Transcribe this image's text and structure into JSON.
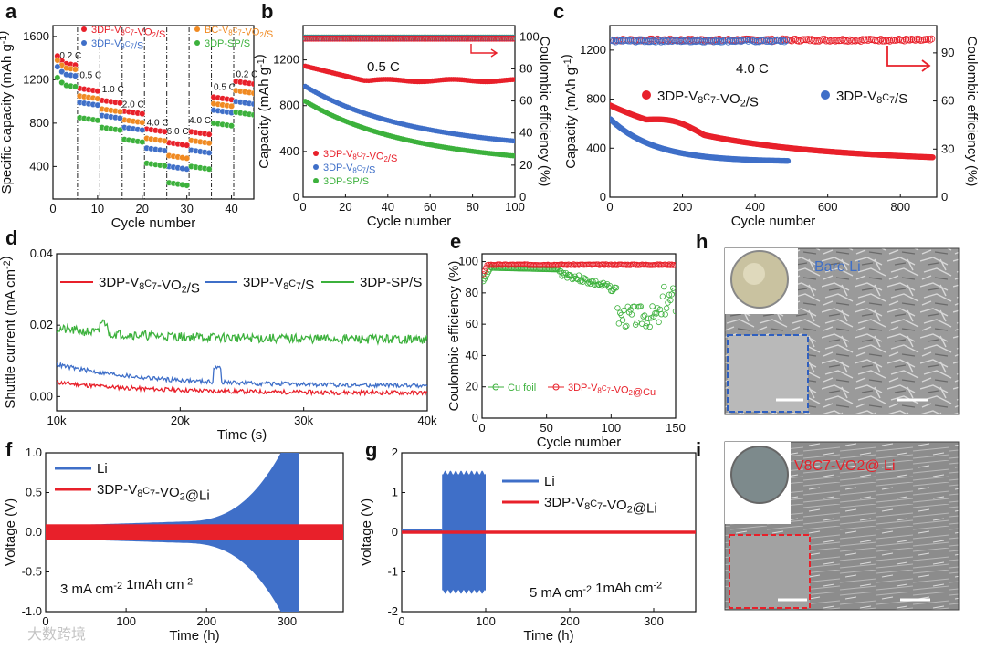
{
  "colors": {
    "red": "#e8202a",
    "blue": "#3f6fc8",
    "green": "#3cb13c",
    "orange": "#f08a22"
  },
  "panel_labels": {
    "a": "a",
    "b": "b",
    "c": "c",
    "d": "d",
    "e": "e",
    "f": "f",
    "g": "g",
    "h": "h",
    "i": "i"
  },
  "watermark": "大数跨境",
  "chart_data": [
    {
      "id": "a",
      "type": "scatter",
      "xlabel": "Cycle number",
      "ylabel": "Specific capacity (mAh g-1)",
      "xlim": [
        0,
        45
      ],
      "ylim": [
        100,
        1700
      ],
      "xticks": [
        0,
        10,
        20,
        30,
        40
      ],
      "yticks": [
        400,
        800,
        1200,
        1600
      ],
      "rate_labels": [
        {
          "label": "0.2 C",
          "x": 1.5,
          "y": 1395
        },
        {
          "label": "0.5 C",
          "x": 6,
          "y": 1215
        },
        {
          "label": "1.0 C",
          "x": 11,
          "y": 1085
        },
        {
          "label": "2.0 C",
          "x": 15.5,
          "y": 945
        },
        {
          "label": "4.0 C",
          "x": 21,
          "y": 780
        },
        {
          "label": "6.0 C",
          "x": 25.5,
          "y": 700
        },
        {
          "label": "4.0 C",
          "x": 30.5,
          "y": 800
        },
        {
          "label": "0.5 C",
          "x": 36,
          "y": 1105
        },
        {
          "label": "0.2 C",
          "x": 41,
          "y": 1225
        }
      ],
      "dividers": [
        5,
        10,
        15,
        20,
        25,
        30,
        35,
        40
      ],
      "series": [
        {
          "name": "3DP-V8C7-VO2/S",
          "color": "red",
          "levels": [
            1360,
            1120,
            1010,
            910,
            745,
            620,
            720,
            1040,
            1185
          ]
        },
        {
          "name": "BC-V8C7-VO2/S",
          "color": "orange",
          "levels": [
            1320,
            1050,
            930,
            830,
            660,
            500,
            640,
            980,
            1100
          ]
        },
        {
          "name": "3DP-V8C7/S",
          "color": "blue",
          "levels": [
            1260,
            990,
            870,
            760,
            570,
            400,
            550,
            920,
            1000
          ]
        },
        {
          "name": "3DP-SP/S",
          "color": "green",
          "levels": [
            1160,
            850,
            760,
            650,
            430,
            250,
            400,
            800,
            900
          ]
        }
      ]
    },
    {
      "id": "b",
      "type": "scatter",
      "xlabel": "Cycle number",
      "ylabel": "Capacity (mAh g-1)",
      "ylabel_right": "Coulombic efficiency (%)",
      "xlim": [
        0,
        100
      ],
      "ylim": [
        0,
        1500
      ],
      "ylim_right": [
        0,
        107
      ],
      "xticks": [
        0,
        20,
        40,
        60,
        80,
        100
      ],
      "yticks": [
        0,
        400,
        800,
        1200
      ],
      "yticks_right": [
        0,
        20,
        40,
        60,
        80,
        100
      ],
      "annotation": "0.5 C",
      "series": [
        {
          "name": "3DP-V8C7-VO2/S",
          "color": "red",
          "start": 1150,
          "end": 1020,
          "shape": "dip"
        },
        {
          "name": "3DP-V8C7/S",
          "color": "blue",
          "start": 980,
          "end": 490,
          "shape": "decay"
        },
        {
          "name": "3DP-SP/S",
          "color": "green",
          "start": 850,
          "end": 360,
          "shape": "decay"
        }
      ],
      "efficiency": 99.5
    },
    {
      "id": "c",
      "type": "scatter",
      "xlabel": "Cycle number",
      "ylabel": "Capacity (mAh g-1)",
      "ylabel_right": "Coulombic efficiency (%)",
      "xlim": [
        0,
        900
      ],
      "ylim": [
        0,
        1400
      ],
      "ylim_right": [
        0,
        107
      ],
      "xticks": [
        0,
        200,
        400,
        600,
        800
      ],
      "yticks": [
        0,
        400,
        800,
        1200
      ],
      "yticks_right": [
        0,
        30,
        60,
        90
      ],
      "annotation": "4.0 C",
      "series": [
        {
          "name": "3DP-V8C7-VO2/S",
          "color": "red",
          "start": 750,
          "end": 330,
          "n": 890
        },
        {
          "name": "3DP-V8C7/S",
          "color": "blue",
          "start": 640,
          "end": 290,
          "n": 490
        }
      ],
      "efficiency": 98
    },
    {
      "id": "d",
      "type": "line",
      "xlabel": "Time (s)",
      "ylabel": "Shuttle current (mA cm-2)",
      "xlim": [
        10000,
        40000
      ],
      "ylim": [
        -0.004,
        0.04
      ],
      "xticks": [
        10000,
        20000,
        30000,
        40000
      ],
      "xtick_labels": [
        "10k",
        "20k",
        "30k",
        "40k"
      ],
      "yticks": [
        0.0,
        0.02,
        0.04
      ],
      "ytick_labels": [
        "0.00",
        "0.02",
        "0.04"
      ],
      "series": [
        {
          "name": "3DP-V8C7-VO2/S",
          "color": "red",
          "start": 0.004,
          "end": 0.001
        },
        {
          "name": "3DP-V8C7/S",
          "color": "blue",
          "start": 0.009,
          "end": 0.003
        },
        {
          "name": "3DP-SP/S",
          "color": "green",
          "start": 0.019,
          "end": 0.016
        }
      ]
    },
    {
      "id": "e",
      "type": "scatter",
      "xlabel": "Cycle number",
      "ylabel": "Coulombic efficiency (%)",
      "xlim": [
        0,
        150
      ],
      "ylim": [
        0,
        105
      ],
      "xticks": [
        0,
        50,
        100,
        150
      ],
      "yticks": [
        0,
        20,
        40,
        60,
        80,
        100
      ],
      "series": [
        {
          "name": "Cu foil",
          "color": "green"
        },
        {
          "name": "3DP-V8C7-VO2@Cu",
          "color": "red",
          "value": 98
        }
      ]
    },
    {
      "id": "f",
      "type": "area",
      "xlabel": "Time (h)",
      "ylabel": "Voltage (V)",
      "xlim": [
        0,
        370
      ],
      "ylim": [
        -1.0,
        1.0
      ],
      "xticks": [
        0,
        100,
        200,
        300
      ],
      "yticks": [
        -1.0,
        -0.5,
        0.0,
        0.5,
        1.0
      ],
      "ytick_labels": [
        "-1.0",
        "-0.5",
        "0.0",
        "0.5",
        "1.0"
      ],
      "condition": "3 mA cm-2  1mAh cm-2",
      "series": [
        {
          "name": "Li",
          "color": "blue",
          "end_h": 315
        },
        {
          "name": "3DP-V8C7-VO2@Li",
          "color": "red",
          "amplitude": 0.1
        }
      ]
    },
    {
      "id": "g",
      "type": "area",
      "xlabel": "Time (h)",
      "ylabel": "Voltage (V)",
      "xlim": [
        0,
        350
      ],
      "ylim": [
        -2,
        2
      ],
      "xticks": [
        0,
        100,
        200,
        300
      ],
      "yticks": [
        -2,
        -1,
        0,
        1,
        2
      ],
      "condition": "5 mA cm-2  1mAh cm-2",
      "series": [
        {
          "name": "Li",
          "color": "blue",
          "start_h": 48,
          "end_h": 100,
          "amplitude": 1.55
        },
        {
          "name": "3DP-V8C7-VO2@Li",
          "color": "red",
          "amplitude": 0.04
        }
      ]
    }
  ],
  "sem": [
    {
      "id": "h",
      "label": "Bare Li"
    },
    {
      "id": "i",
      "label": "V8C7-VO2@ Li"
    }
  ]
}
